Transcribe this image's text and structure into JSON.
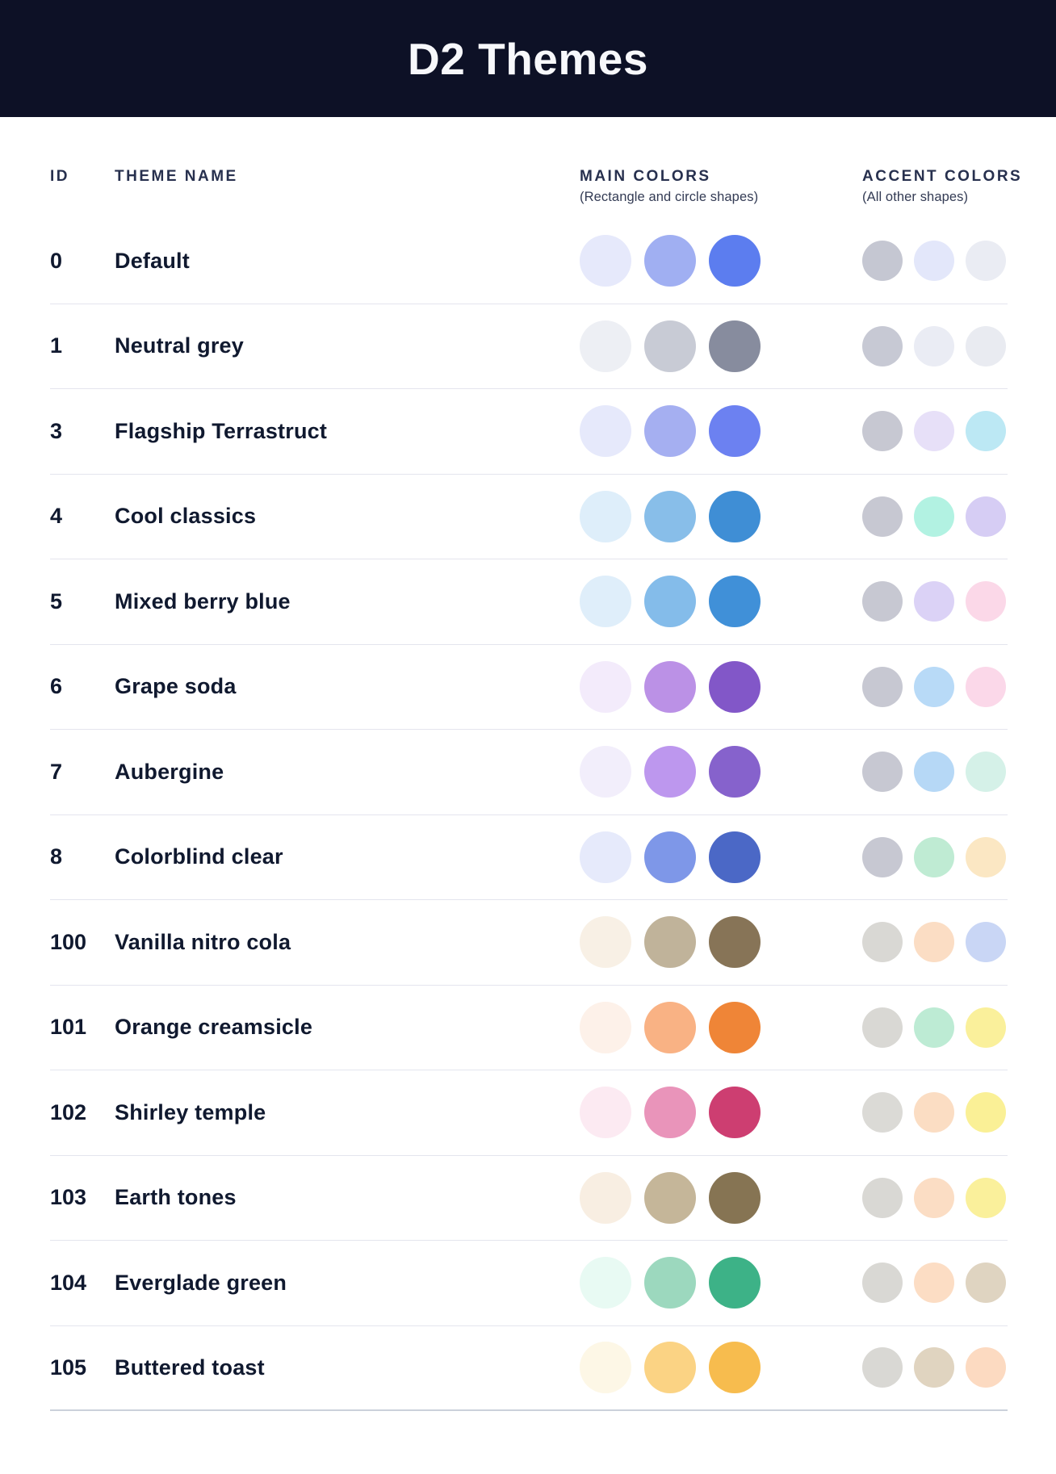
{
  "header": {
    "title": "D2 Themes"
  },
  "table": {
    "columns": {
      "id": "ID",
      "name": "THEME NAME",
      "main": "MAIN COLORS",
      "main_caption": "(Rectangle and circle shapes)",
      "accent": "ACCENT COLORS",
      "accent_caption": "(All other shapes)"
    },
    "rows": [
      {
        "id": "0",
        "name": "Default",
        "main": [
          "#E6E9FB",
          "#A0AFF2",
          "#5C7DEF"
        ],
        "accent": [
          "#C5C7D2",
          "#E3E7FA",
          "#EAECF3"
        ]
      },
      {
        "id": "1",
        "name": "Neutral grey",
        "main": [
          "#EDEFF4",
          "#C8CBD5",
          "#878C9E"
        ],
        "accent": [
          "#C7C9D4",
          "#EAECF4",
          "#E9EBF1"
        ]
      },
      {
        "id": "3",
        "name": "Flagship Terrastruct",
        "main": [
          "#E6E9FB",
          "#A5AFF1",
          "#6C81F1"
        ],
        "accent": [
          "#C7C8D2",
          "#E7E0F8",
          "#BCE8F4"
        ]
      },
      {
        "id": "4",
        "name": "Cool classics",
        "main": [
          "#DEEEFA",
          "#88BEE9",
          "#3F8ED5"
        ],
        "accent": [
          "#C7C8D2",
          "#B2F2E2",
          "#D6CDF4"
        ]
      },
      {
        "id": "5",
        "name": "Mixed berry blue",
        "main": [
          "#DFEEFA",
          "#84BCEA",
          "#4090D8"
        ],
        "accent": [
          "#C7C8D2",
          "#DBD2F6",
          "#FBD8E8"
        ]
      },
      {
        "id": "6",
        "name": "Grape soda",
        "main": [
          "#F3EBFB",
          "#BB91E6",
          "#8257C8"
        ],
        "accent": [
          "#C7C8D2",
          "#B8DAF7",
          "#FBD8E9"
        ]
      },
      {
        "id": "7",
        "name": "Aubergine",
        "main": [
          "#F2EEFB",
          "#BD97EE",
          "#8662CC"
        ],
        "accent": [
          "#C7C8D2",
          "#B6D8F6",
          "#D5F1E8"
        ]
      },
      {
        "id": "8",
        "name": "Colorblind clear",
        "main": [
          "#E6EAFB",
          "#7E97E8",
          "#4B68C6"
        ],
        "accent": [
          "#C7C8D2",
          "#BFEBD3",
          "#FBE7C3"
        ]
      },
      {
        "id": "100",
        "name": "Vanilla nitro cola",
        "main": [
          "#F8F0E5",
          "#C0B39A",
          "#877457"
        ],
        "accent": [
          "#D9D8D4",
          "#FBDDC4",
          "#C9D6F5"
        ]
      },
      {
        "id": "101",
        "name": "Orange creamsicle",
        "main": [
          "#FDF1E9",
          "#F9B284",
          "#EF8537"
        ],
        "accent": [
          "#D9D8D4",
          "#BDEBD4",
          "#FAF09B"
        ]
      },
      {
        "id": "102",
        "name": "Shirley temple",
        "main": [
          "#FCEAF2",
          "#E994BA",
          "#CD3E71"
        ],
        "accent": [
          "#DBDAD6",
          "#FBDDC3",
          "#FAF096"
        ]
      },
      {
        "id": "103",
        "name": "Earth tones",
        "main": [
          "#F8EEE2",
          "#C5B699",
          "#867453"
        ],
        "accent": [
          "#D9D8D4",
          "#FBDDC4",
          "#FAF09B"
        ]
      },
      {
        "id": "104",
        "name": "Everglade green",
        "main": [
          "#E8FAF3",
          "#9CD8BE",
          "#3DB287"
        ],
        "accent": [
          "#D9D8D4",
          "#FCDDC4",
          "#DFD4C1"
        ]
      },
      {
        "id": "105",
        "name": "Buttered toast",
        "main": [
          "#FDF7E6",
          "#FBD384",
          "#F7BC4E"
        ],
        "accent": [
          "#D9D8D4",
          "#E0D4C0",
          "#FCDAC1"
        ]
      }
    ]
  },
  "colors": {
    "header_bg": "#0D1126",
    "title_text": "#F7F8FB",
    "heading_text": "#27304E",
    "caption_text": "#333B54",
    "row_text": "#10192F",
    "divider": "#E4E5EE",
    "divider_bottom": "#CBD1DB"
  }
}
